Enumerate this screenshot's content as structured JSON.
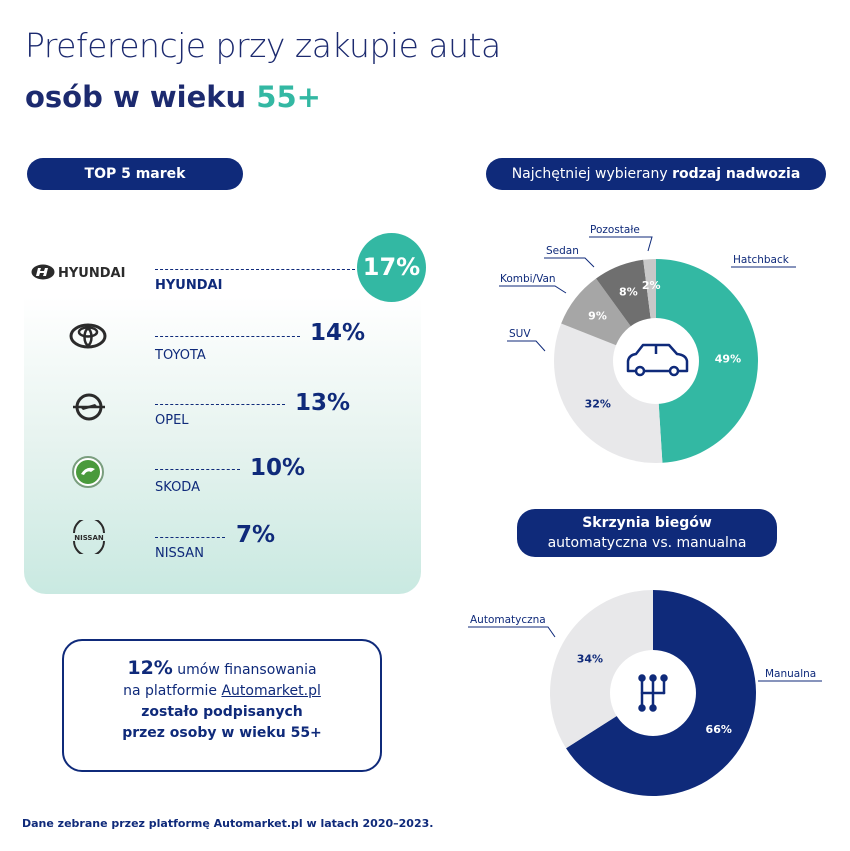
{
  "header": {
    "title_line1": "Preferencje przy zakupie auta",
    "title_line2_prefix": "osób w wieku ",
    "title_line2_accent": "55+"
  },
  "brands_section": {
    "pill_label": "TOP 5 marek",
    "brands": [
      {
        "name": "HYUNDAI",
        "pct": "17%",
        "logo": "hyundai-logo",
        "logo_text": "HYUNDAI"
      },
      {
        "name": "TOYOTA",
        "pct": "14%",
        "logo": "toyota-logo"
      },
      {
        "name": "OPEL",
        "pct": "13%",
        "logo": "opel-logo"
      },
      {
        "name": "SKODA",
        "pct": "10%",
        "logo": "skoda-logo"
      },
      {
        "name": "NISSAN",
        "pct": "7%",
        "logo": "nissan-logo",
        "logo_text": "NISSAN"
      }
    ]
  },
  "info_box": {
    "pct": "12%",
    "line1_rest": " umów finansowania",
    "line2_prefix": "na platformie ",
    "line2_link": "Automarket.pl",
    "line3": "zostało podpisanych",
    "line4": "przez osoby w wieku 55+"
  },
  "body_section": {
    "pill_prefix": "Najchętniej wybierany ",
    "pill_bold": "rodzaj nadwozia"
  },
  "gearbox_section": {
    "pill_line1": "Skrzynia biegów",
    "pill_line2": "automatyczna vs. manualna"
  },
  "footer": {
    "text": "Dane zebrane przez platformę Automarket.pl w latach 2020–2023."
  },
  "colors": {
    "navy": "#0f2a7a",
    "teal": "#33b8a3",
    "light_gray": "#e8e8ea",
    "mid_gray": "#a6a6a6",
    "dark_gray": "#6f6f6f",
    "charcoal": "#555555",
    "pale_gray": "#c8c8c8"
  },
  "chart_data": [
    {
      "type": "pie",
      "title": "Najchętniej wybierany rodzaj nadwozia",
      "categories": [
        "Hatchback",
        "SUV",
        "Kombi/Van",
        "Sedan",
        "Pozostałe"
      ],
      "values": [
        49,
        32,
        9,
        8,
        2
      ],
      "value_labels": [
        "49%",
        "32%",
        "9%",
        "8%",
        "2%"
      ],
      "colors": [
        "#33b8a3",
        "#e8e8ea",
        "#a6a6a6",
        "#6f6f6f",
        "#c8c8c8"
      ],
      "center_icon": "car-icon"
    },
    {
      "type": "pie",
      "title": "Skrzynia biegów automatyczna vs. manualna",
      "categories": [
        "Manualna",
        "Automatyczna"
      ],
      "values": [
        66,
        34
      ],
      "value_labels": [
        "66%",
        "34%"
      ],
      "colors": [
        "#0f2a7a",
        "#e8e8ea"
      ],
      "center_icon": "gear-shift-icon"
    }
  ]
}
